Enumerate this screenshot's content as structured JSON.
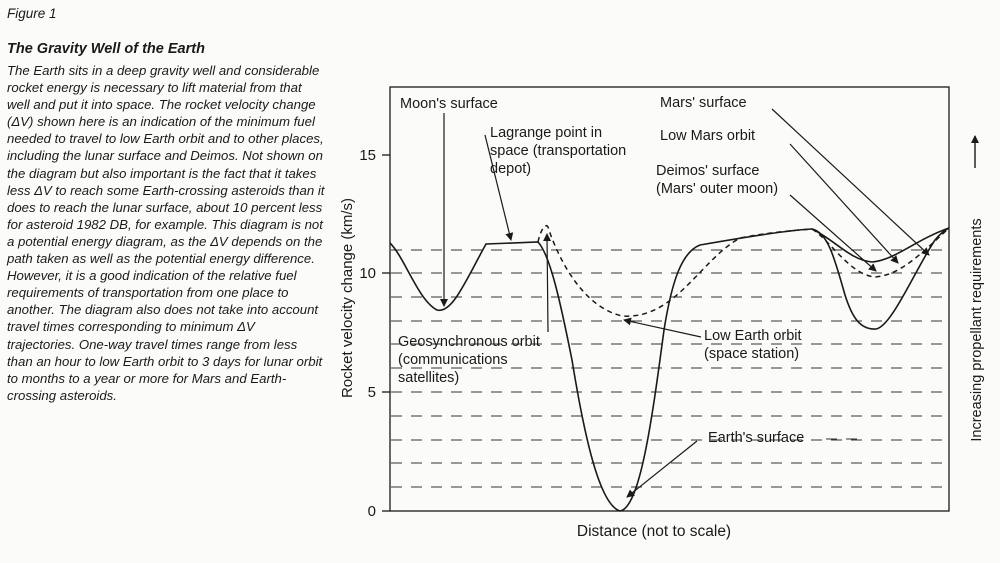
{
  "figure_label": "Figure 1",
  "title": "The Gravity Well of the Earth",
  "body_text": "The Earth sits in a deep gravity well and considerable rocket energy is necessary to lift material from that well and put it into space. The rocket velocity change (ΔV) shown here is an indication of the minimum fuel needed to travel to low Earth orbit and to other places, including the lunar surface and Deimos. Not shown on the diagram but also important is the fact that it takes less ΔV to reach some Earth-crossing asteroids than it does to reach the lunar surface, about 10 percent less for asteroid 1982 DB, for example. This diagram is not a potential energy diagram, as the ΔV depends on the path taken as well as the potential energy difference. However, it is a good indication of the relative fuel requirements of transportation from one place to another. The diagram also does not take into account travel times corresponding to minimum ΔV trajectories. One-way travel times range from less than an hour to low Earth orbit to 3 days for lunar orbit to months to a year or more for Mars and Earth-crossing asteroids.",
  "diagram": {
    "y_axis_label": "Rocket velocity change (km/s)",
    "x_axis_label": "Distance (not to scale)",
    "right_axis_label": "Increasing propellant requirements",
    "y_ticks": [
      "0",
      "5",
      "10",
      "15"
    ],
    "labels": {
      "moon_surface": "Moon's surface",
      "lagrange_1": "Lagrange point in",
      "lagrange_2": "space (transportation",
      "lagrange_3": "depot)",
      "geo_1": "Geosynchronous orbit",
      "geo_2": "(communications",
      "geo_3": "satellites)",
      "leo_1": "Low Earth orbit",
      "leo_2": "(space station)",
      "earth_surface": "Earth's surface",
      "mars_surface": "Mars' surface",
      "low_mars": "Low Mars orbit",
      "deimos_1": "Deimos' surface",
      "deimos_2": "(Mars' outer moon)"
    }
  }
}
